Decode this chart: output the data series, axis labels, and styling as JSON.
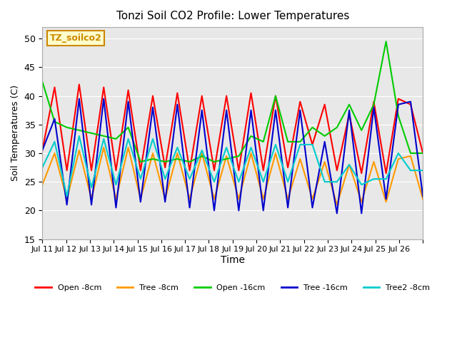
{
  "title": "Tonzi Soil CO2 Profile: Lower Temperatures",
  "xlabel": "Time",
  "ylabel": "Soil Temperatures (C)",
  "ylim": [
    15,
    52
  ],
  "yticks": [
    15,
    20,
    25,
    30,
    35,
    40,
    45,
    50
  ],
  "plot_bg_color": "#e8e8e8",
  "label_box_text": "TZ_soilco2",
  "label_box_facecolor": "#ffffcc",
  "label_box_edgecolor": "#cc8800",
  "series": {
    "open8": {
      "label": "Open -8cm",
      "color": "#ff0000",
      "data": [
        30.5,
        41.5,
        27.0,
        42.0,
        27.0,
        41.5,
        27.0,
        41.0,
        27.0,
        40.0,
        27.5,
        40.5,
        27.0,
        40.0,
        27.0,
        40.0,
        27.0,
        40.5,
        27.0,
        40.0,
        27.5,
        39.0,
        31.5,
        38.5,
        27.0,
        36.8,
        26.5,
        39.0,
        26.5,
        39.5,
        38.5,
        30.0
      ]
    },
    "tree8": {
      "label": "Tree -8cm",
      "color": "#ff9900",
      "data": [
        24.5,
        30.0,
        22.0,
        30.5,
        22.0,
        31.0,
        22.0,
        31.0,
        22.0,
        30.0,
        22.0,
        30.0,
        22.0,
        30.0,
        22.0,
        29.5,
        22.0,
        30.0,
        22.0,
        30.0,
        22.0,
        29.0,
        22.0,
        28.5,
        21.0,
        28.0,
        21.5,
        28.5,
        21.5,
        29.0,
        29.5,
        22.0
      ]
    },
    "open16": {
      "label": "Open -16cm",
      "color": "#00cc00",
      "data": [
        42.5,
        35.5,
        34.5,
        34.0,
        33.5,
        33.0,
        32.5,
        34.5,
        28.5,
        29.0,
        28.5,
        29.0,
        28.5,
        29.5,
        28.5,
        29.0,
        29.5,
        33.0,
        32.0,
        40.0,
        32.0,
        32.0,
        34.5,
        33.0,
        34.5,
        38.5,
        34.0,
        38.5,
        49.5,
        36.5,
        30.0,
        30.0
      ]
    },
    "tree16": {
      "label": "Tree -16cm",
      "color": "#0000cc",
      "data": [
        30.5,
        36.0,
        21.0,
        39.5,
        21.0,
        39.5,
        20.5,
        39.0,
        21.5,
        38.0,
        21.5,
        38.5,
        20.5,
        37.5,
        20.0,
        37.5,
        20.0,
        37.5,
        20.0,
        37.5,
        20.5,
        37.5,
        20.5,
        32.0,
        19.5,
        37.5,
        19.5,
        38.0,
        22.0,
        38.5,
        39.0,
        22.5
      ]
    },
    "tree2_8": {
      "label": "Tree2 -8cm",
      "color": "#00cccc",
      "data": [
        27.5,
        32.0,
        22.5,
        33.0,
        24.0,
        32.5,
        24.5,
        32.5,
        25.5,
        32.5,
        25.5,
        31.0,
        25.5,
        30.5,
        25.0,
        31.0,
        25.0,
        31.0,
        25.0,
        31.5,
        25.0,
        31.5,
        31.5,
        25.0,
        25.0,
        28.0,
        24.5,
        25.5,
        25.5,
        30.0,
        27.0,
        27.0
      ]
    }
  },
  "x_tick_labels": [
    "Jul 11",
    "Jul 12",
    "Jul 13",
    "Jul 14",
    "Jul 15",
    "Jul 16",
    "Jul 17",
    "Jul 18",
    "Jul 19",
    "Jul 20",
    "Jul 21",
    "Jul 22",
    "Jul 23",
    "Jul 24",
    "Jul 25",
    "Jul 26",
    ""
  ],
  "n_points": 32,
  "n_days": 16
}
